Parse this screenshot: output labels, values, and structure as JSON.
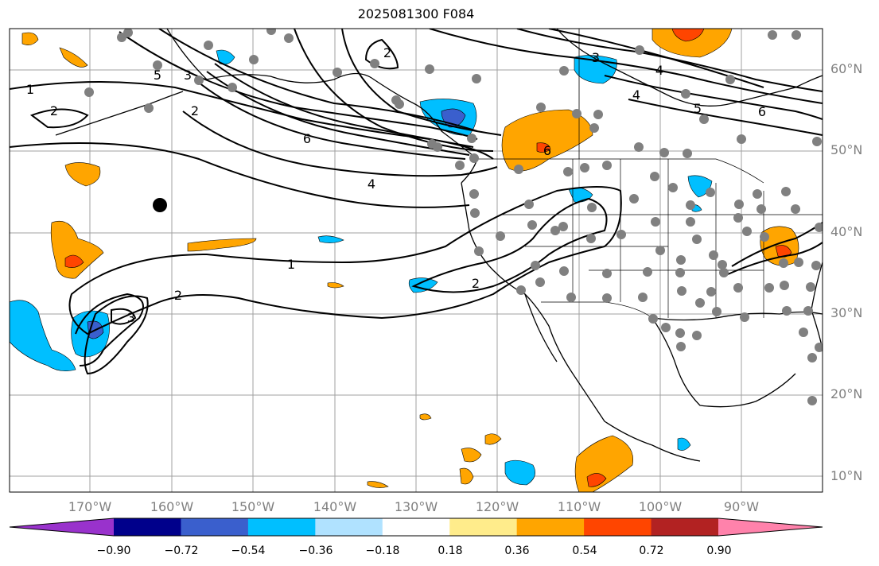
{
  "title": "2025081300 F084",
  "map": {
    "projection": "plate-carree",
    "lon_range": [
      -180,
      -80
    ],
    "lat_range": [
      8,
      65
    ],
    "lon_labels": [
      "170°W",
      "160°W",
      "150°W",
      "140°W",
      "130°W",
      "120°W",
      "110°W",
      "100°W",
      "90°W"
    ],
    "lat_labels": [
      "10°N",
      "20°N",
      "30°N",
      "40°N",
      "50°N",
      "60°N"
    ],
    "grid": true,
    "coastline_color": "#000000",
    "station_marker_color": "#808080",
    "highlight_marker_color": "#000000"
  },
  "contours": {
    "color": "#000000",
    "labels": [
      "1",
      "2",
      "2",
      "3",
      "4",
      "5",
      "6",
      "2",
      "3",
      "4",
      "5",
      "6",
      "1",
      "2",
      "2",
      "3",
      "4",
      "6"
    ]
  },
  "colorbar": {
    "colors": [
      "#9932cc",
      "#00008b",
      "#3a5fcd",
      "#00bfff",
      "#b0e2ff",
      "#ffffff",
      "#ffec8b",
      "#ffa500",
      "#ff4500",
      "#b22222",
      "#ff82ab"
    ],
    "tick_labels": [
      "−0.90",
      "−0.72",
      "−0.54",
      "−0.36",
      "−0.18",
      "0.18",
      "0.36",
      "0.54",
      "0.72",
      "0.90"
    ],
    "extend": "both"
  }
}
